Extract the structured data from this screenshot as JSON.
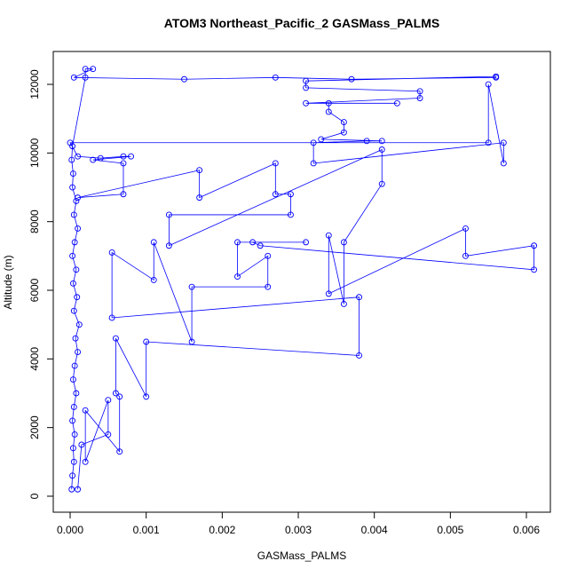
{
  "chart_data": {
    "type": "line",
    "title": "ATOM3 Northeast_Pacific_2 GASMass_PALMS",
    "x_label": "GASMass_PALMS",
    "y_label": "Altitude (m)",
    "color": "#0000ff",
    "markers": true,
    "xlim": [
      -0.000222,
      0.006315
    ],
    "ylim": [
      -466,
      12958
    ],
    "xticks": [
      {
        "value": 0,
        "label": "0.000"
      },
      {
        "value": 0.001,
        "label": "0.001"
      },
      {
        "value": 0.002,
        "label": "0.002"
      },
      {
        "value": 0.003,
        "label": "0.003"
      },
      {
        "value": 0.004,
        "label": "0.004"
      },
      {
        "value": 0.005,
        "label": "0.005"
      },
      {
        "value": 0.006,
        "label": "0.006"
      }
    ],
    "yticks": [
      0,
      2000,
      4000,
      6000,
      8000,
      10000,
      12000
    ],
    "x": [
      2e-05,
      3e-05,
      5e-05,
      4e-05,
      6e-05,
      3e-05,
      5e-05,
      8e-05,
      4e-05,
      6e-05,
      0.0001,
      7e-05,
      0.00012,
      5e-05,
      9e-05,
      4e-05,
      8e-05,
      3e-05,
      6e-05,
      0.0001,
      5e-05,
      8e-05,
      3e-05,
      4e-05,
      2e-05,
      3e-05,
      0.0002,
      0.0002,
      0.0003,
      5e-05,
      0.0015,
      0.0027,
      0.0037,
      0.0056,
      0.0056,
      0.0031,
      0.0031,
      0.0046,
      0.0046,
      0.0031,
      0.0043,
      0.0034,
      0.0034,
      0.0036,
      0.0036,
      0.0033,
      0.0041,
      0.0039,
      0.0032,
      0.0032,
      0.0057,
      0.0057,
      0.0055,
      0.0055,
      0.0,
      0.0001,
      0.0004,
      0.0007,
      0.0008,
      0.0003,
      0.0007,
      0.0007,
      0.0001,
      0.0017,
      0.0017,
      0.0027,
      0.0027,
      0.0029,
      0.0029,
      0.0013,
      0.0013,
      0.0041,
      0.0041,
      0.0036,
      0.0036,
      0.0034,
      0.0034,
      0.0052,
      0.0052,
      0.0061,
      0.0061,
      0.0025,
      0.0024,
      0.0031,
      0.0022,
      0.0022,
      0.0026,
      0.0026,
      0.0016,
      0.0016,
      0.0011,
      0.0011,
      0.00055,
      0.00055,
      0.0038,
      0.0038,
      0.001,
      0.001,
      0.0006,
      0.0006,
      0.00065,
      0.00065,
      0.0002,
      0.0002,
      0.0005,
      0.0005,
      0.00015,
      0.0001
    ],
    "values": [
      200,
      600,
      1000,
      1400,
      1800,
      2200,
      2600,
      3000,
      3400,
      3800,
      4200,
      4600,
      5000,
      5400,
      5800,
      6200,
      6600,
      7000,
      7400,
      7800,
      8200,
      8600,
      9000,
      9400,
      9800,
      10200,
      12200,
      12450,
      12450,
      12200,
      12150,
      12200,
      12150,
      12200,
      12230,
      12100,
      11900,
      11800,
      11600,
      11450,
      11450,
      11450,
      11200,
      10900,
      10600,
      10400,
      10350,
      10350,
      10300,
      9700,
      10300,
      9700,
      12000,
      10300,
      10300,
      9900,
      9850,
      9900,
      9900,
      9800,
      9700,
      8800,
      8700,
      9500,
      8700,
      9700,
      8800,
      8800,
      8200,
      8200,
      7300,
      10100,
      9100,
      7400,
      5600,
      7600,
      5900,
      7800,
      7000,
      7300,
      6600,
      7300,
      7400,
      7400,
      7400,
      6400,
      7000,
      6100,
      6100,
      4500,
      7400,
      6300,
      7100,
      5200,
      5800,
      4100,
      4500,
      2900,
      4600,
      3000,
      2900,
      1300,
      2500,
      1000,
      2800,
      1800,
      1500,
      200
    ]
  }
}
